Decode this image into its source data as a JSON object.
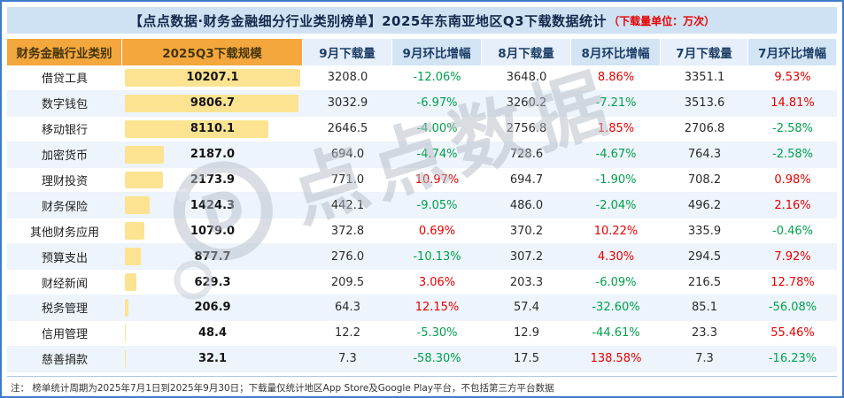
{
  "title": {
    "main": "【点点数据·财务金融细分行业类别榜单】2025年东南亚地区Q3下载数据统计",
    "unit_note": "（下载量单位：万次）"
  },
  "watermark": {
    "text": "点点数据",
    "logo_letter": "D"
  },
  "footnote": "注：  榜单统计周期为2025年7月1日到2025年9月30日；下载量仅统计地区App Store及Google Play平台，不包括第三方平台数据",
  "colors": {
    "frame_border": "#3d7cc9",
    "title_bg": "#cfe2f3",
    "header_orange": "#f3a73d",
    "header_blue": "#d3e4f4",
    "bar_yellow": "#fce391",
    "row_alt": "#edf4fb",
    "positive_red": "#e60000",
    "negative_green": "#00a04c"
  },
  "chart_data": {
    "type": "table",
    "title": "2025年东南亚地区Q3下载数据统计",
    "unit": "万次",
    "bar_column": "2025Q3下载规模",
    "bar_max": 10207.1,
    "columns": [
      "财务金融行业类别",
      "2025Q3下载规模",
      "9月下载量",
      "9月环比增幅",
      "8月下载量",
      "8月环比增幅",
      "7月下载量",
      "7月环比增幅"
    ],
    "rows": [
      {
        "category": "借贷工具",
        "q3": 10207.1,
        "m9": 3208.0,
        "m9_pct": "-12.06%",
        "m8": 3648.0,
        "m8_pct": "8.86%",
        "m7": 3351.1,
        "m7_pct": "9.53%"
      },
      {
        "category": "数字钱包",
        "q3": 9806.7,
        "m9": 3032.9,
        "m9_pct": "-6.97%",
        "m8": 3260.2,
        "m8_pct": "-7.21%",
        "m7": 3513.6,
        "m7_pct": "14.81%"
      },
      {
        "category": "移动银行",
        "q3": 8110.1,
        "m9": 2646.5,
        "m9_pct": "-4.00%",
        "m8": 2756.8,
        "m8_pct": "1.85%",
        "m7": 2706.8,
        "m7_pct": "-2.58%"
      },
      {
        "category": "加密货币",
        "q3": 2187.0,
        "m9": 694.0,
        "m9_pct": "-4.74%",
        "m8": 728.6,
        "m8_pct": "-4.67%",
        "m7": 764.3,
        "m7_pct": "-2.58%"
      },
      {
        "category": "理财投资",
        "q3": 2173.9,
        "m9": 771.0,
        "m9_pct": "10.97%",
        "m8": 694.7,
        "m8_pct": "-1.90%",
        "m7": 708.2,
        "m7_pct": "0.98%"
      },
      {
        "category": "财务保险",
        "q3": 1424.3,
        "m9": 442.1,
        "m9_pct": "-9.05%",
        "m8": 486.0,
        "m8_pct": "-2.04%",
        "m7": 496.2,
        "m7_pct": "2.16%"
      },
      {
        "category": "其他财务应用",
        "q3": 1079.0,
        "m9": 372.8,
        "m9_pct": "0.69%",
        "m8": 370.2,
        "m8_pct": "10.22%",
        "m7": 335.9,
        "m7_pct": "-0.46%"
      },
      {
        "category": "预算支出",
        "q3": 877.7,
        "m9": 276.0,
        "m9_pct": "-10.13%",
        "m8": 307.2,
        "m8_pct": "4.30%",
        "m7": 294.5,
        "m7_pct": "7.92%"
      },
      {
        "category": "财经新闻",
        "q3": 629.3,
        "m9": 209.5,
        "m9_pct": "3.06%",
        "m8": 203.3,
        "m8_pct": "-6.09%",
        "m7": 216.5,
        "m7_pct": "12.78%"
      },
      {
        "category": "税务管理",
        "q3": 206.9,
        "m9": 64.3,
        "m9_pct": "12.15%",
        "m8": 57.4,
        "m8_pct": "-32.60%",
        "m7": 85.1,
        "m7_pct": "-56.08%"
      },
      {
        "category": "信用管理",
        "q3": 48.4,
        "m9": 12.2,
        "m9_pct": "-5.30%",
        "m8": 12.9,
        "m8_pct": "-44.61%",
        "m7": 23.3,
        "m7_pct": "55.46%"
      },
      {
        "category": "慈善捐款",
        "q3": 32.1,
        "m9": 7.3,
        "m9_pct": "-58.30%",
        "m8": 17.5,
        "m8_pct": "138.58%",
        "m7": 7.3,
        "m7_pct": "-16.23%"
      }
    ]
  }
}
